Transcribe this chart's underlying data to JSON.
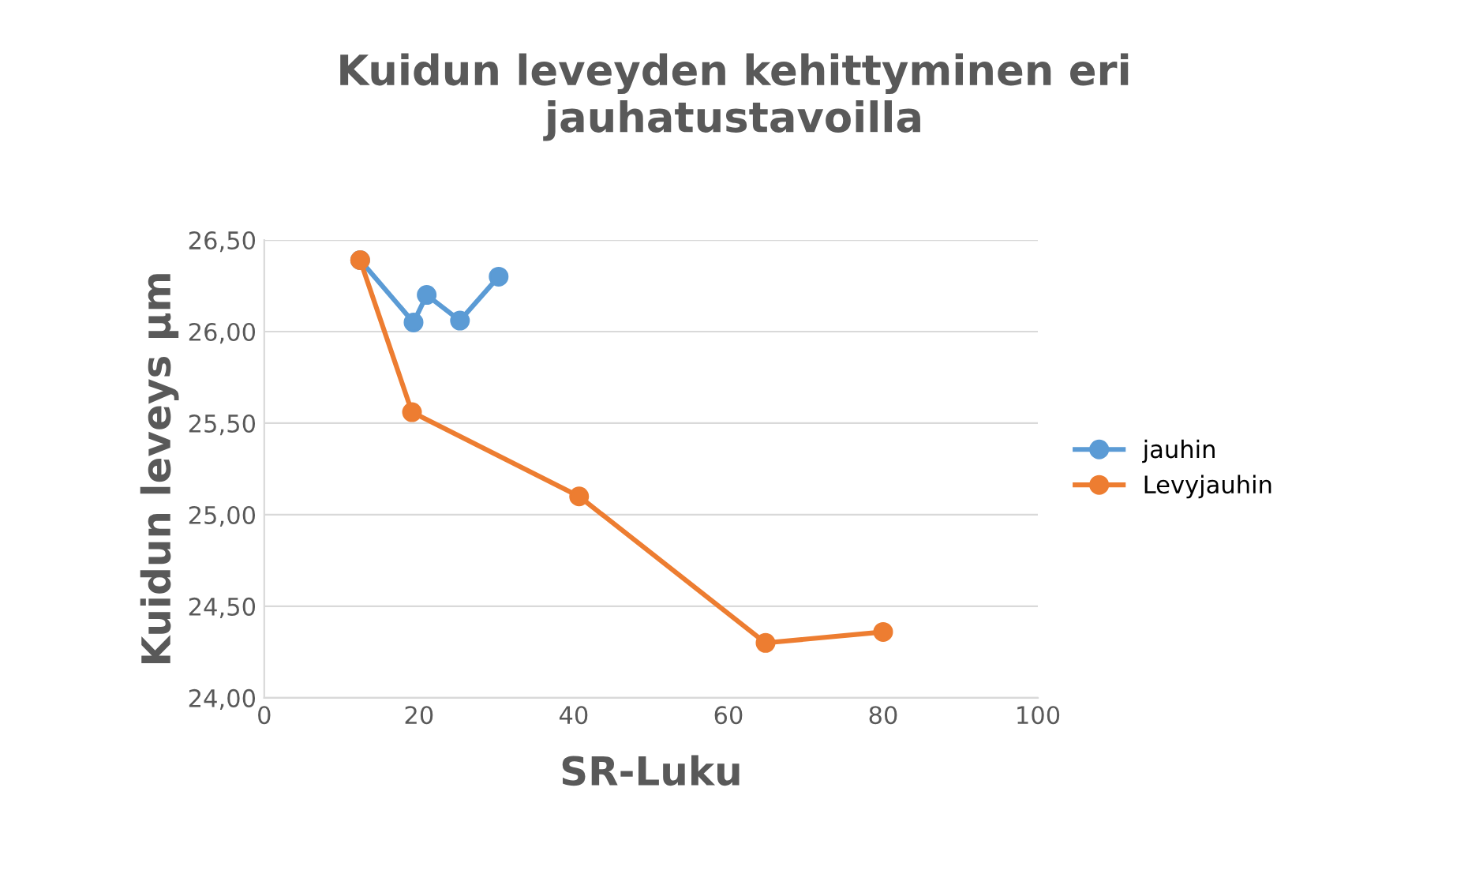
{
  "chart_data": {
    "type": "line",
    "title": "Kuidun leveyden kehittyminen eri\njauhatustavoilla",
    "xlabel": "SR-Luku",
    "ylabel": "Kuidun leveys µm",
    "series": [
      {
        "name": "jauhin",
        "color": "#5b9bd5",
        "x": [
          12.4,
          19.3,
          21.0,
          25.3,
          30.3
        ],
        "values": [
          26.39,
          26.05,
          26.2,
          26.06,
          26.3
        ]
      },
      {
        "name": "Levyjauhin",
        "color": "#ed7d31",
        "x": [
          12.4,
          19.1,
          40.7,
          64.8,
          80.0
        ],
        "values": [
          26.39,
          25.56,
          25.1,
          24.3,
          24.36
        ]
      }
    ],
    "xlim": [
      0,
      100
    ],
    "xticks": [
      0,
      20,
      40,
      60,
      80,
      100
    ],
    "ylim": [
      24,
      26.5
    ],
    "yticks": [
      {
        "value": 24,
        "label": "24,00"
      },
      {
        "value": 24.5,
        "label": "24,50"
      },
      {
        "value": 25,
        "label": "25,00"
      },
      {
        "value": 25.5,
        "label": "25,50"
      },
      {
        "value": 26,
        "label": "26,00"
      },
      {
        "value": 26.5,
        "label": "26,50"
      }
    ],
    "grid": "y",
    "legend": "right",
    "marker": "circle",
    "line_style": "solid"
  }
}
